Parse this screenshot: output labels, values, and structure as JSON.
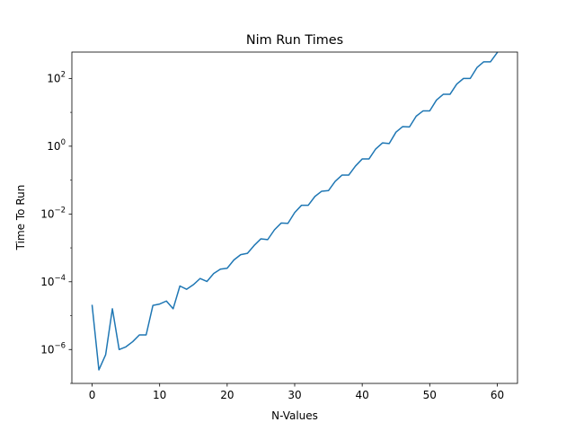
{
  "chart_data": {
    "type": "line",
    "title": "Nim Run Times",
    "xlabel": "N-Values",
    "ylabel": "Time To Run",
    "yscale": "log",
    "xlim": [
      -3,
      63
    ],
    "ylim": [
      1e-07,
      600
    ],
    "grid": false,
    "legend": "none",
    "line_color": "#1f77b4",
    "x_ticks": [
      {
        "value": 0,
        "label": "0"
      },
      {
        "value": 10,
        "label": "10"
      },
      {
        "value": 20,
        "label": "20"
      },
      {
        "value": 30,
        "label": "30"
      },
      {
        "value": 40,
        "label": "40"
      },
      {
        "value": 50,
        "label": "50"
      },
      {
        "value": 60,
        "label": "60"
      }
    ],
    "y_ticks": [
      {
        "value": 1e-06,
        "base": "10",
        "exp": "−6"
      },
      {
        "value": 0.0001,
        "base": "10",
        "exp": "−4"
      },
      {
        "value": 0.01,
        "base": "10",
        "exp": "−2"
      },
      {
        "value": 1,
        "base": "10",
        "exp": "0"
      },
      {
        "value": 100,
        "base": "10",
        "exp": "2"
      }
    ],
    "series": [
      {
        "x": [
          0,
          1,
          2,
          3,
          4,
          5,
          6,
          7,
          8,
          9,
          10,
          11,
          12,
          13,
          14,
          15,
          16,
          17,
          18,
          19,
          20,
          21,
          22,
          23,
          24,
          25,
          26,
          27,
          28,
          29,
          30,
          31,
          32,
          33,
          34,
          35,
          36,
          37,
          38,
          39,
          40,
          41,
          42,
          43,
          44,
          45,
          46,
          47,
          48,
          49,
          50,
          51,
          52,
          53,
          54,
          55,
          56,
          57,
          58,
          59,
          60
        ],
        "y": [
          2e-05,
          2.5e-07,
          7e-07,
          1.6e-05,
          1e-06,
          1.2e-06,
          1.7e-06,
          2.7e-06,
          2.7e-06,
          2e-05,
          2.2e-05,
          2.7e-05,
          1.6e-05,
          7.5e-05,
          6e-05,
          8.2e-05,
          0.000125,
          0.000102,
          0.000175,
          0.000235,
          0.00025,
          0.00044,
          0.00063,
          0.00069,
          0.00118,
          0.00185,
          0.00175,
          0.0034,
          0.0054,
          0.0053,
          0.011,
          0.018,
          0.018,
          0.033,
          0.047,
          0.049,
          0.092,
          0.14,
          0.14,
          0.26,
          0.42,
          0.42,
          0.83,
          1.25,
          1.2,
          2.6,
          3.8,
          3.7,
          7.7,
          11,
          11,
          23,
          34,
          34,
          68,
          100,
          100,
          210,
          310,
          310,
          580
        ]
      }
    ]
  }
}
